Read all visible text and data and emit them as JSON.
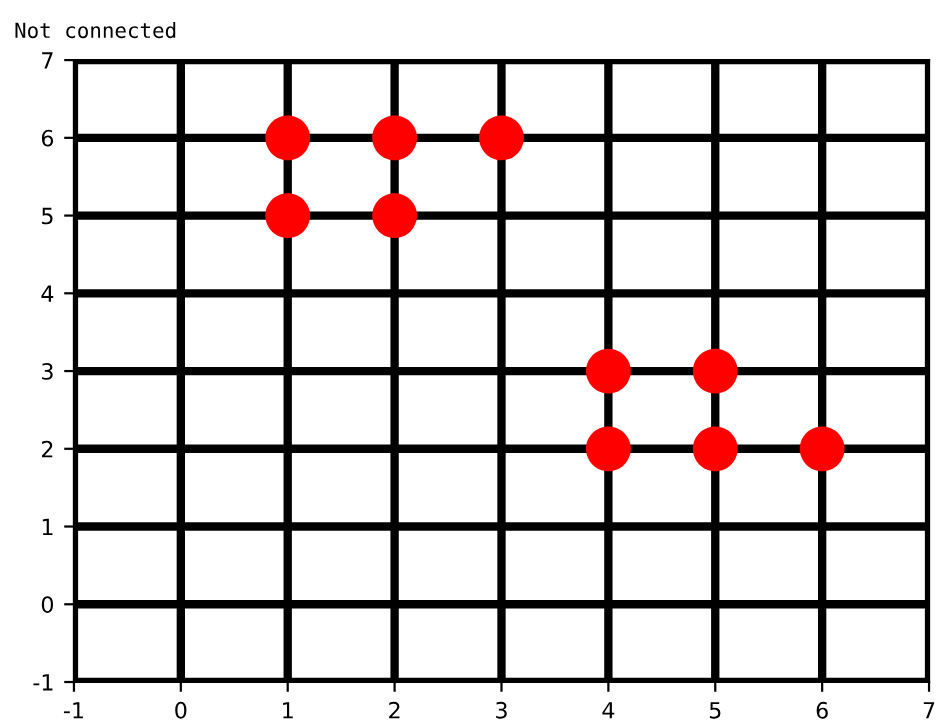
{
  "chart_data": {
    "type": "scatter",
    "title": "Not connected",
    "x": [
      1,
      2,
      3,
      1,
      2,
      4,
      5,
      4,
      5,
      6
    ],
    "series": [
      {
        "color": "#ff0000",
        "values": [
          6,
          6,
          6,
          5,
          5,
          3,
          3,
          2,
          2,
          2
        ]
      }
    ],
    "xlim": [
      -1,
      7
    ],
    "ylim": [
      -1,
      7
    ],
    "xticks": [
      -1,
      0,
      1,
      2,
      3,
      4,
      5,
      6,
      7
    ],
    "yticks": [
      -1,
      0,
      1,
      2,
      3,
      4,
      5,
      6,
      7
    ],
    "grid": true,
    "marker": "circle"
  }
}
